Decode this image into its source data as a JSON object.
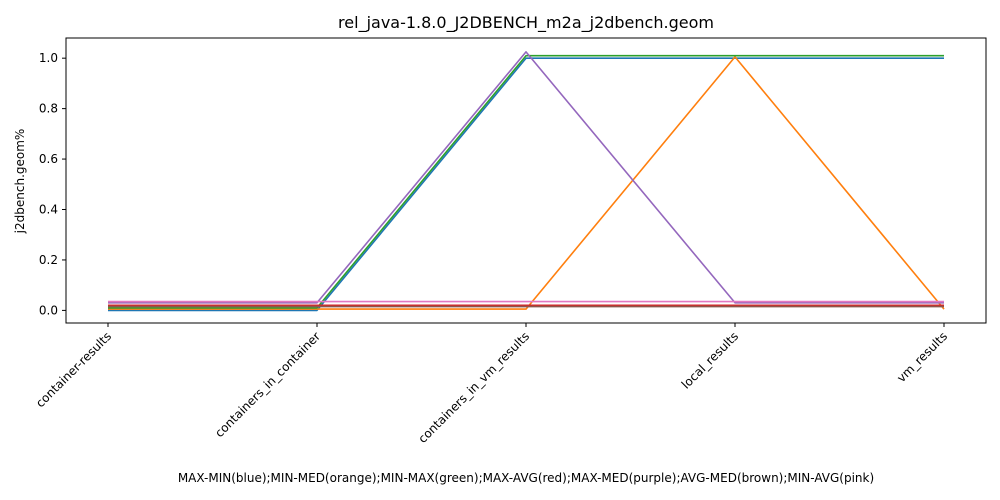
{
  "chart_data": {
    "type": "line",
    "title": "rel_java-1.8.0_J2DBENCH_m2a_j2dbench.geom",
    "xlabel": "MAX-MIN(blue);MIN-MED(orange);MIN-MAX(green);MAX-AVG(red);MAX-MED(purple);AVG-MED(brown);MIN-AVG(pink)",
    "ylabel": "j2dbench.geom%",
    "categories": [
      "container-results",
      "containers_in_container",
      "containers_in_vm_results",
      "local_results",
      "vm_results"
    ],
    "y_ticks": [
      "0.0",
      "0.2",
      "0.4",
      "0.6",
      "0.8",
      "1.0"
    ],
    "ylim": [
      -0.05,
      1.08
    ],
    "grid": false,
    "series": [
      {
        "color": "#1f77b4",
        "values": [
          0.0,
          0.0,
          1.0,
          1.0,
          1.0
        ]
      },
      {
        "color": "#ff7f0e",
        "values": [
          0.005,
          0.005,
          0.005,
          1.005,
          0.005
        ]
      },
      {
        "color": "#2ca02c",
        "values": [
          0.01,
          0.01,
          1.01,
          1.01,
          1.01
        ]
      },
      {
        "color": "#d62728",
        "values": [
          0.02,
          0.02,
          0.02,
          0.02,
          0.02
        ]
      },
      {
        "color": "#9467bd",
        "values": [
          0.03,
          0.03,
          1.025,
          0.03,
          0.03
        ]
      },
      {
        "color": "#8c564b",
        "values": [
          0.015,
          0.015,
          0.015,
          0.015,
          0.015
        ]
      },
      {
        "color": "#e377c2",
        "values": [
          0.035,
          0.035,
          0.035,
          0.035,
          0.035
        ]
      }
    ]
  }
}
